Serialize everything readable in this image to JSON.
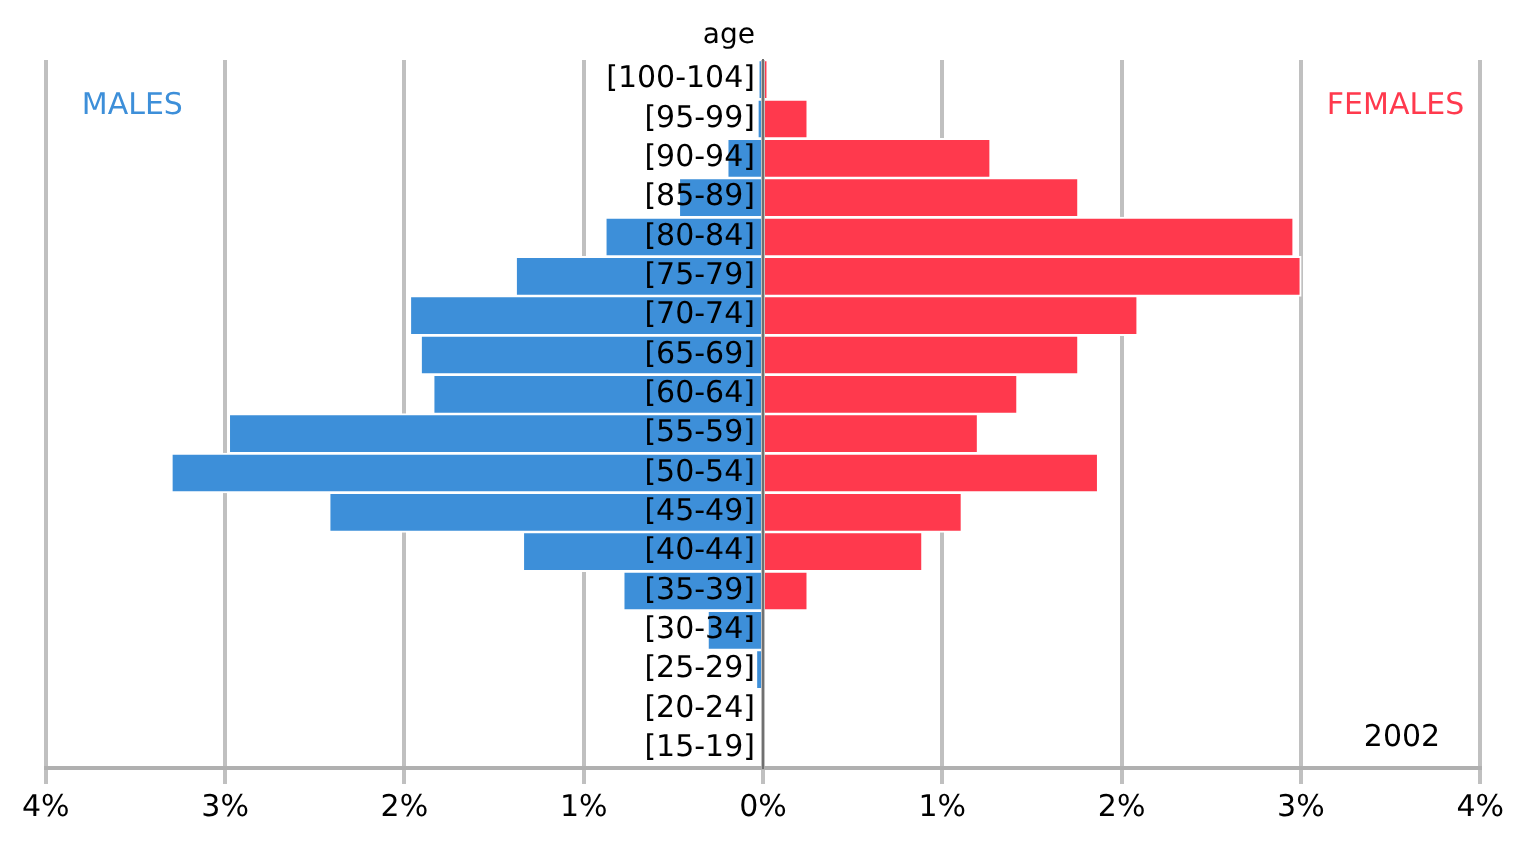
{
  "chart_data": {
    "type": "bar",
    "orientation": "horizontal",
    "stacked": true,
    "ylabel": "age",
    "categories": [
      "[100-104]",
      "[95-99]",
      "[90-94]",
      "[85-89]",
      "[80-84]",
      "[75-79]",
      "[70-74]",
      "[65-69]",
      "[60-64]",
      "[55-59]",
      "[50-54]",
      "[45-49]",
      "[40-44]",
      "[35-39]",
      "[30-34]",
      "[25-29]",
      "[20-24]",
      "[15-19]"
    ],
    "series": [
      {
        "name": "MALES",
        "color": "#3d8fd9",
        "values": [
          -0.02,
          -0.03,
          -0.2,
          -0.47,
          -0.88,
          -1.38,
          -1.97,
          -1.91,
          -1.84,
          -2.98,
          -3.3,
          -2.42,
          -1.34,
          -0.78,
          -0.31,
          -0.04,
          0,
          0
        ]
      },
      {
        "name": "FEMALES",
        "color": "#ff394d",
        "values": [
          0.02,
          0.25,
          1.27,
          1.76,
          2.96,
          3.0,
          2.09,
          1.76,
          1.42,
          1.2,
          1.87,
          1.11,
          0.89,
          0.25,
          0,
          0,
          0,
          0
        ]
      }
    ],
    "xlim": [
      -4,
      4
    ],
    "xticks": [
      {
        "value": -4,
        "label": "4%"
      },
      {
        "value": -3,
        "label": "3%"
      },
      {
        "value": -2,
        "label": "2%"
      },
      {
        "value": -1,
        "label": "1%"
      },
      {
        "value": 0,
        "label": "0%"
      },
      {
        "value": 1,
        "label": "1%"
      },
      {
        "value": 2,
        "label": "2%"
      },
      {
        "value": 3,
        "label": "3%"
      },
      {
        "value": 4,
        "label": "4%"
      }
    ],
    "grid": "x",
    "legend": false,
    "annotations": [
      "2002"
    ]
  }
}
